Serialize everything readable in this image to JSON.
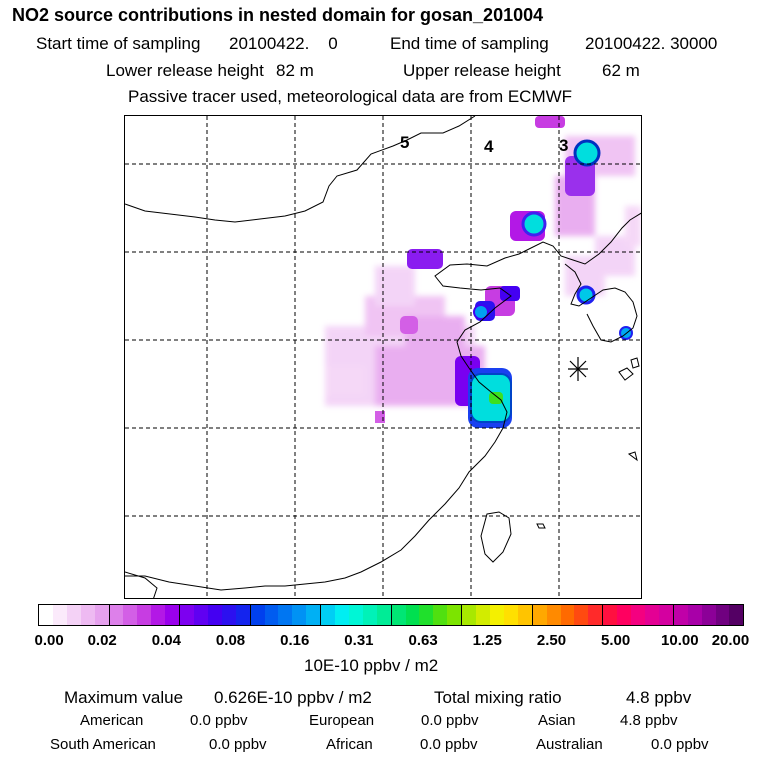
{
  "header": {
    "title": "NO2 source contributions in nested domain for gosan_201004",
    "start_label": "Start time of sampling",
    "start_value": "20100422.    0",
    "end_label": "End time of sampling",
    "end_value": "20100422. 30000",
    "lower_label": "Lower release height",
    "lower_value": "82 m",
    "upper_label": "Upper release height",
    "upper_value": "62 m",
    "note": "Passive tracer used, meteorological data are from ECMWF"
  },
  "map": {
    "grid_labels": [
      "5",
      "4",
      "3"
    ],
    "receptor_icon": "asterisk-receptor-icon"
  },
  "legend": {
    "colors": [
      "#ffffff",
      "#fbeafb",
      "#f4d2f6",
      "#eebaf2",
      "#e6a1ee",
      "#dd80ea",
      "#d35fe6",
      "#c73de2",
      "#b318e6",
      "#9a00ec",
      "#7d00f0",
      "#6000f2",
      "#4400f2",
      "#2c10f0",
      "#1424ee",
      "#0040ee",
      "#005cf0",
      "#0076f2",
      "#0092f4",
      "#00b0f4",
      "#00cef4",
      "#00eef2",
      "#00f6d6",
      "#00f2b8",
      "#00ec96",
      "#00e674",
      "#00e050",
      "#20e02c",
      "#50e010",
      "#7ce400",
      "#a8e800",
      "#d2ec00",
      "#f4f000",
      "#ffe000",
      "#ffc400",
      "#ffa800",
      "#ff8a00",
      "#ff6a00",
      "#ff4a10",
      "#ff2a2a",
      "#ff1040",
      "#ff0060",
      "#f40080",
      "#e40094",
      "#d400a0",
      "#c000a8",
      "#a800a8",
      "#8c0098",
      "#700080",
      "#540064"
    ],
    "ticks": [
      "0.00",
      "0.02",
      "0.04",
      "0.08",
      "0.16",
      "0.31",
      "0.63",
      "1.25",
      "2.50",
      "5.00",
      "10.00",
      "20.00"
    ],
    "unit": "10E-10 ppbv / m2"
  },
  "summary": {
    "max_label": "Maximum value",
    "max_value": "0.626E-10 ppbv / m2",
    "total_label": "Total mixing ratio",
    "total_value": "4.8 ppbv",
    "regions": [
      {
        "name": "American",
        "value": "0.0 ppbv"
      },
      {
        "name": "European",
        "value": "0.0 ppbv"
      },
      {
        "name": "Asian",
        "value": "4.8 ppbv"
      },
      {
        "name": "South American",
        "value": "0.0 ppbv"
      },
      {
        "name": "African",
        "value": "0.0 ppbv"
      },
      {
        "name": "Australian",
        "value": "0.0 ppbv"
      }
    ]
  }
}
